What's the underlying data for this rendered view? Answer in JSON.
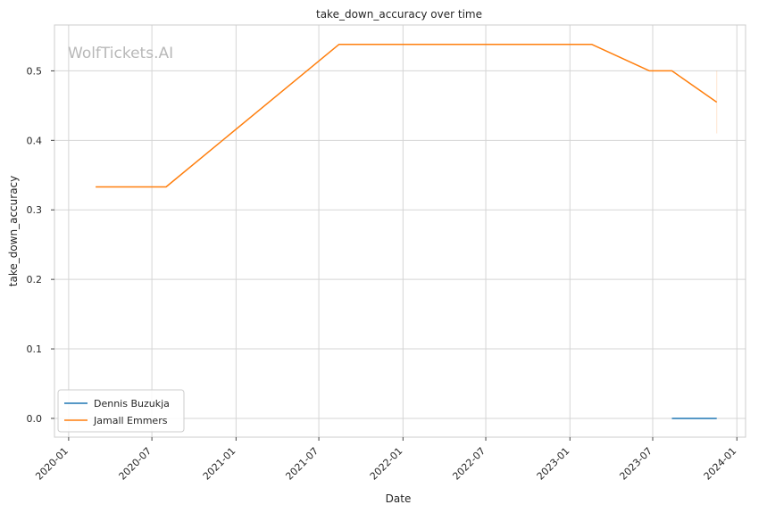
{
  "chart_data": {
    "type": "line",
    "title": "take_down_accuracy over time",
    "xlabel": "Date",
    "ylabel": "take_down_accuracy",
    "watermark": "WolfTickets.AI",
    "xlim": [
      "2019-12-01",
      "2024-01-20"
    ],
    "ylim": [
      -0.027,
      0.566
    ],
    "x_ticks": [
      "2020-01",
      "2020-07",
      "2021-01",
      "2021-07",
      "2022-01",
      "2022-07",
      "2023-01",
      "2023-07",
      "2024-01"
    ],
    "y_ticks": [
      0.0,
      0.1,
      0.2,
      0.3,
      0.4,
      0.5
    ],
    "y_tick_labels": [
      "0.0",
      "0.1",
      "0.2",
      "0.3",
      "0.4",
      "0.5"
    ],
    "grid": true,
    "legend_position": "lower-left",
    "series": [
      {
        "name": "Dennis Buzukja",
        "color": "#1f77b4",
        "points": [
          {
            "x": "2023-08-12",
            "y": 0.0
          },
          {
            "x": "2023-11-18",
            "y": 0.0
          }
        ]
      },
      {
        "name": "Jamall Emmers",
        "color": "#ff7f0e",
        "points": [
          {
            "x": "2020-02-29",
            "y": 0.333
          },
          {
            "x": "2020-08-01",
            "y": 0.333
          },
          {
            "x": "2021-08-14",
            "y": 0.538
          },
          {
            "x": "2023-02-18",
            "y": 0.538
          },
          {
            "x": "2023-06-24",
            "y": 0.5
          },
          {
            "x": "2023-08-12",
            "y": 0.5
          },
          {
            "x": "2023-11-18",
            "y": 0.455
          }
        ],
        "band_end": {
          "x": "2023-11-18",
          "low": 0.41,
          "high": 0.5
        }
      }
    ]
  }
}
